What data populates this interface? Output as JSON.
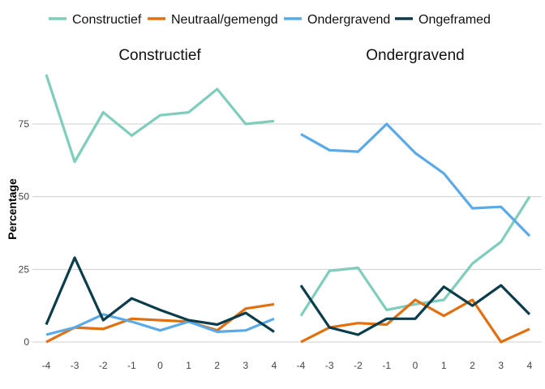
{
  "chart_data": {
    "type": "line",
    "ylabel": "Percentage",
    "xlabel": "",
    "legend_position": "top",
    "grid": "horizontal",
    "x": [
      -4,
      -3,
      -2,
      -1,
      0,
      1,
      2,
      3,
      4
    ],
    "yticks": [
      0,
      25,
      50,
      75
    ],
    "ylim": [
      0,
      92
    ],
    "legend": [
      {
        "name": "Constructief",
        "color": "#7fcdbb"
      },
      {
        "name": "Neutraal/gemengd",
        "color": "#e07010"
      },
      {
        "name": "Ondergravend",
        "color": "#5aaae8"
      },
      {
        "name": "Ongeframed",
        "color": "#0b3d4a"
      }
    ],
    "panels": [
      {
        "title": "Constructief",
        "series": [
          {
            "name": "Constructief",
            "color": "#7fcdbb",
            "values": [
              92,
              62,
              79,
              71,
              78,
              79,
              87,
              75,
              76
            ]
          },
          {
            "name": "Neutraal/gemengd",
            "color": "#e07010",
            "values": [
              0,
              5,
              4.5,
              8,
              7.5,
              7,
              4,
              11.5,
              13
            ]
          },
          {
            "name": "Ondergravend",
            "color": "#5aaae8",
            "values": [
              2.5,
              5,
              9.5,
              7,
              4,
              7,
              3.5,
              4,
              8
            ]
          },
          {
            "name": "Ongeframed",
            "color": "#0b3d4a",
            "values": [
              6,
              29,
              7.5,
              15,
              11,
              7.5,
              6,
              10,
              3.5
            ]
          }
        ]
      },
      {
        "title": "Ondergravend",
        "series": [
          {
            "name": "Constructief",
            "color": "#7fcdbb",
            "values": [
              9,
              24.5,
              25.5,
              11,
              13,
              14.5,
              27,
              34.5,
              50
            ]
          },
          {
            "name": "Neutraal/gemengd",
            "color": "#e07010",
            "values": [
              0,
              5,
              6.5,
              6,
              14.5,
              9,
              14.5,
              0,
              4.5
            ]
          },
          {
            "name": "Ondergravend",
            "color": "#5aaae8",
            "values": [
              71.5,
              66,
              65.5,
              75,
              65,
              58,
              46,
              46.5,
              36.5
            ]
          },
          {
            "name": "Ongeframed",
            "color": "#0b3d4a",
            "values": [
              19.5,
              5,
              2.5,
              8,
              8,
              19,
              12.5,
              19.5,
              9.5
            ]
          }
        ]
      }
    ]
  }
}
